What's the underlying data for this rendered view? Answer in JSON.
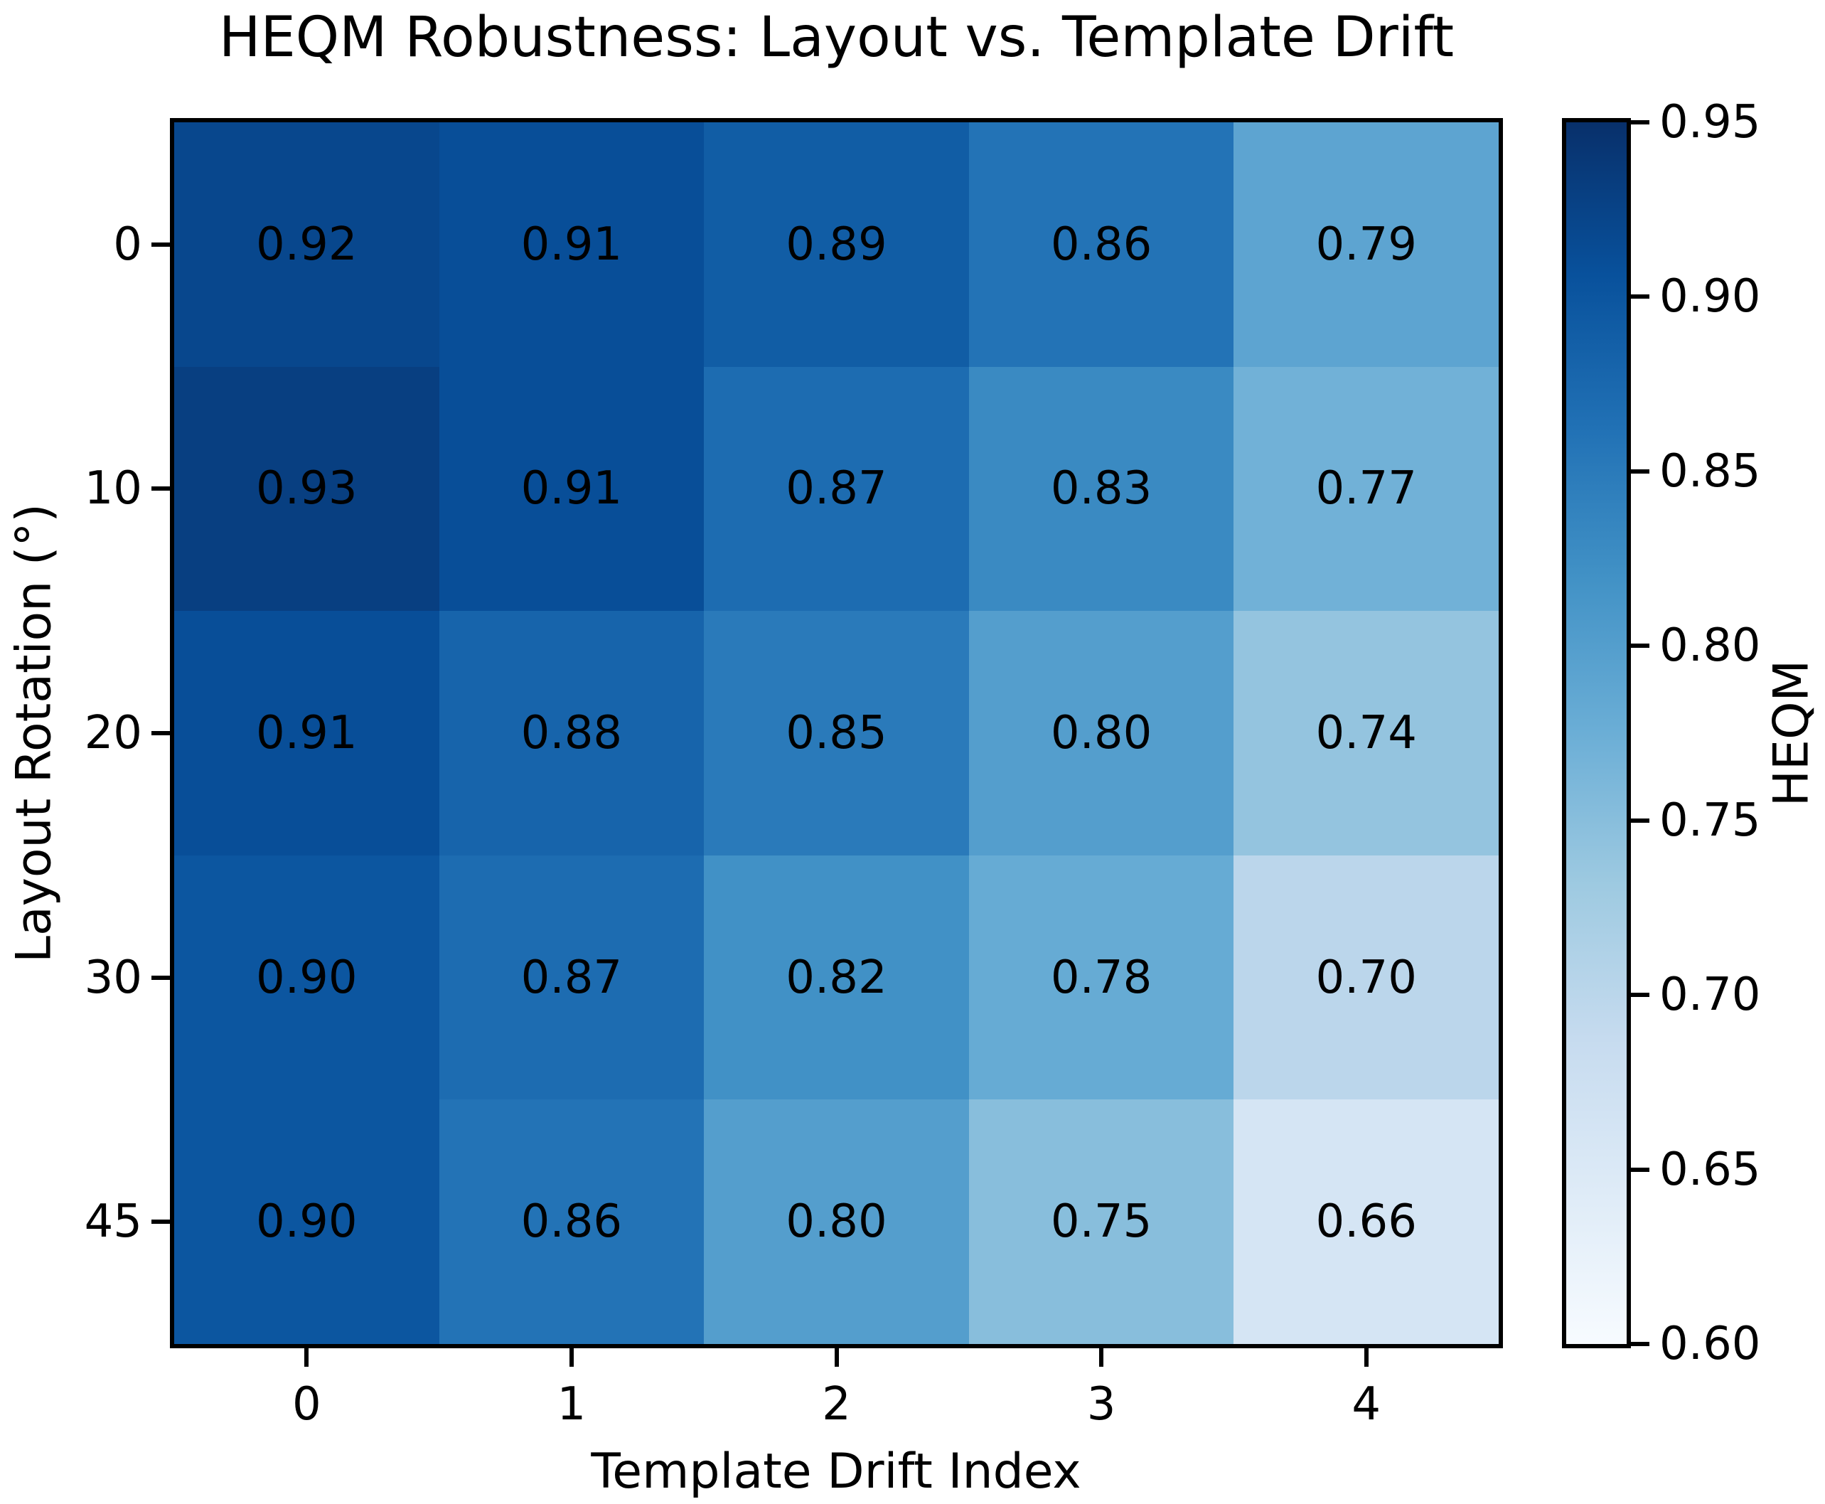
{
  "title": "HEQM Robustness: Layout vs. Template Drift",
  "chart_data": {
    "type": "heatmap",
    "title": "HEQM Robustness: Layout vs. Template Drift",
    "xlabel": "Template Drift Index",
    "ylabel": "Layout Rotation (°)",
    "x_ticks": [
      "0",
      "1",
      "2",
      "3",
      "4"
    ],
    "y_ticks": [
      "0",
      "10",
      "20",
      "30",
      "45"
    ],
    "values": [
      [
        0.92,
        0.91,
        0.89,
        0.86,
        0.79
      ],
      [
        0.93,
        0.91,
        0.87,
        0.83,
        0.77
      ],
      [
        0.91,
        0.88,
        0.85,
        0.8,
        0.74
      ],
      [
        0.9,
        0.87,
        0.82,
        0.78,
        0.7
      ],
      [
        0.9,
        0.86,
        0.8,
        0.75,
        0.66
      ]
    ],
    "labels": [
      [
        "0.92",
        "0.91",
        "0.89",
        "0.86",
        "0.79"
      ],
      [
        "0.93",
        "0.91",
        "0.87",
        "0.83",
        "0.77"
      ],
      [
        "0.91",
        "0.88",
        "0.85",
        "0.80",
        "0.74"
      ],
      [
        "0.90",
        "0.87",
        "0.82",
        "0.78",
        "0.70"
      ],
      [
        "0.90",
        "0.86",
        "0.80",
        "0.75",
        "0.66"
      ]
    ],
    "value_text_color": "#000000",
    "grid": false,
    "colorbar": {
      "label": "HEQM",
      "vmin": 0.6,
      "vmax": 0.95,
      "ticks": [
        "0.95",
        "0.90",
        "0.85",
        "0.80",
        "0.75",
        "0.70",
        "0.65",
        "0.60"
      ]
    },
    "colormap": {
      "name": "Blues",
      "stops": [
        "#f7fbff",
        "#deebf7",
        "#c6dbef",
        "#9ecae1",
        "#6baed6",
        "#4292c6",
        "#2171b5",
        "#08519c",
        "#08306b"
      ]
    }
  }
}
